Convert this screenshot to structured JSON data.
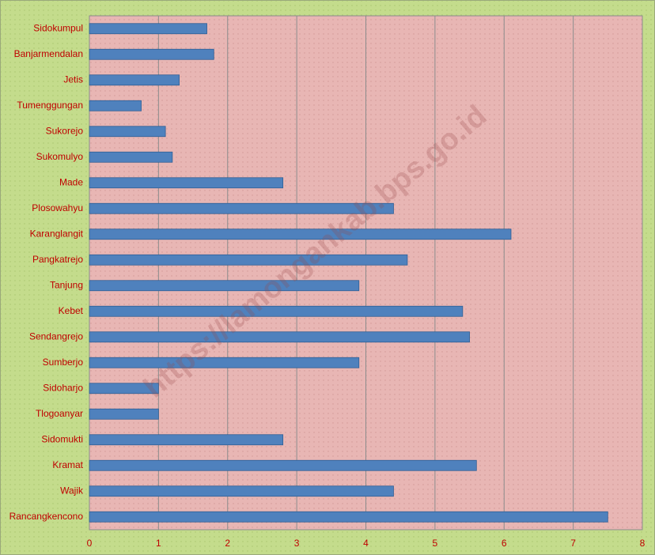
{
  "chart_data": {
    "type": "bar",
    "orientation": "horizontal",
    "watermark": "https://lamongankab.bps.go.id",
    "categories": [
      "Sidokumpul",
      "Banjarmendalan",
      "Jetis",
      "Tumenggungan",
      "Sukorejo",
      "Sukomulyo",
      "Made",
      "Plosowahyu",
      "Karanglangit",
      "Pangkatrejo",
      "Tanjung",
      "Kebet",
      "Sendangrejo",
      "Sumberjo",
      "Sidoharjo",
      "Tlogoanyar",
      "Sidomukti",
      "Kramat",
      "Wajik",
      "Rancangkencono"
    ],
    "values": [
      1.7,
      1.8,
      1.3,
      0.75,
      1.1,
      1.2,
      2.8,
      4.4,
      6.1,
      4.6,
      3.9,
      5.4,
      5.5,
      3.9,
      1.0,
      1.0,
      2.8,
      5.6,
      4.4,
      7.5
    ],
    "color": "#4f81bd",
    "xlim": [
      0,
      8
    ],
    "xticks": [
      0,
      1,
      2,
      3,
      4,
      5,
      6,
      7,
      8
    ],
    "grid": true
  }
}
